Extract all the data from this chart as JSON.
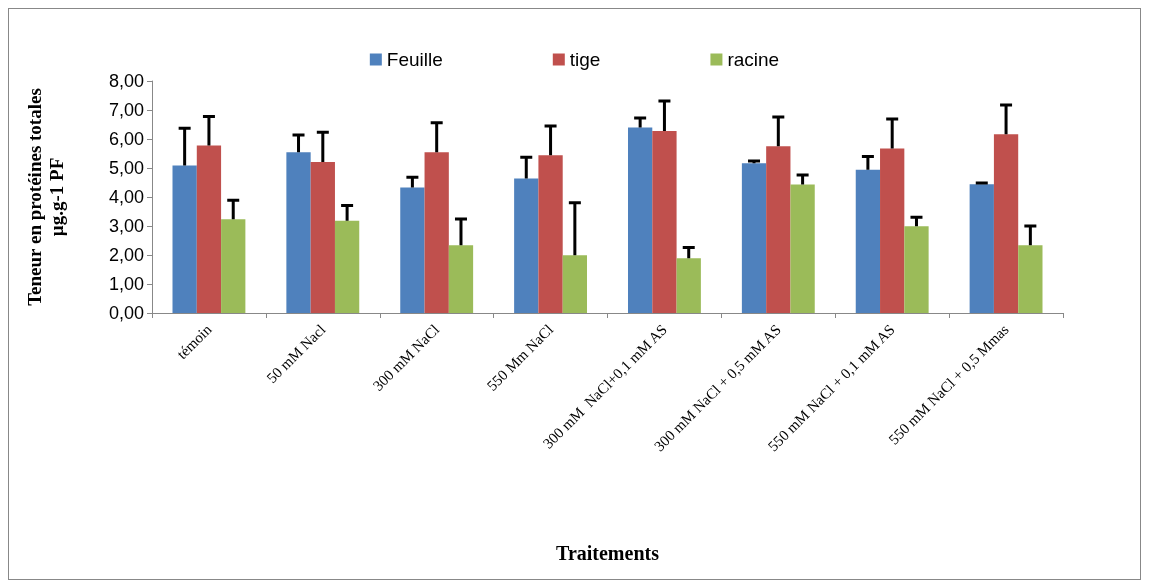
{
  "chart_data": {
    "type": "bar",
    "xlabel": "Traitements",
    "ylabel": "Teneur en protéines totales\nµg.g-1 PF",
    "categories": [
      "témoin",
      "50 mM Nacl",
      "300 mM NaCl",
      "550 Mm NaCl",
      "300 mM  NaCl+0,1 mM AS",
      "300 mM NaCl + 0,5 mM AS",
      "550 mM NaCl + 0,1 mM AS",
      "550 mM NaCl + 0,5 Mmas"
    ],
    "series": [
      {
        "name": "Feuille",
        "color": "#4f81bd",
        "values": [
          5.09,
          5.54,
          4.33,
          4.64,
          6.4,
          5.16,
          4.94,
          4.44
        ],
        "errors": [
          [
            5.09,
            6.37
          ],
          [
            5.54,
            6.14
          ],
          [
            4.33,
            4.68
          ],
          [
            4.64,
            5.37
          ],
          [
            6.4,
            6.72
          ],
          [
            5.16,
            5.24
          ],
          [
            4.94,
            5.4
          ],
          [
            4.44,
            4.48
          ]
        ]
      },
      {
        "name": "tige",
        "color": "#c0504d",
        "values": [
          5.78,
          5.21,
          5.54,
          5.44,
          6.28,
          5.75,
          5.67,
          6.16
        ],
        "errors": [
          [
            5.78,
            6.78
          ],
          [
            5.21,
            6.23
          ],
          [
            5.54,
            6.56
          ],
          [
            5.44,
            6.45
          ],
          [
            6.28,
            7.31
          ],
          [
            5.75,
            6.76
          ],
          [
            5.67,
            6.69
          ],
          [
            6.16,
            7.17
          ]
        ]
      },
      {
        "name": "racine",
        "color": "#9bbb59",
        "values": [
          3.23,
          3.18,
          2.34,
          1.99,
          1.89,
          4.43,
          2.99,
          2.34
        ],
        "errors": [
          [
            3.23,
            3.89
          ],
          [
            3.18,
            3.71
          ],
          [
            2.34,
            3.24
          ],
          [
            1.99,
            3.8
          ],
          [
            1.89,
            2.26
          ],
          [
            4.43,
            4.76
          ],
          [
            2.99,
            3.3
          ],
          [
            2.34,
            3.0
          ]
        ]
      }
    ],
    "ylim": [
      0,
      8
    ],
    "yticks": [
      {
        "value": 0,
        "label": "0,00"
      },
      {
        "value": 1,
        "label": "1,00"
      },
      {
        "value": 2,
        "label": "2,00"
      },
      {
        "value": 3,
        "label": "3,00"
      },
      {
        "value": 4,
        "label": "4,00"
      },
      {
        "value": 5,
        "label": "5,00"
      },
      {
        "value": 6,
        "label": "6,00"
      },
      {
        "value": 7,
        "label": "7,00"
      },
      {
        "value": 8,
        "label": "8,00"
      }
    ],
    "grid": false,
    "legend": "top"
  }
}
